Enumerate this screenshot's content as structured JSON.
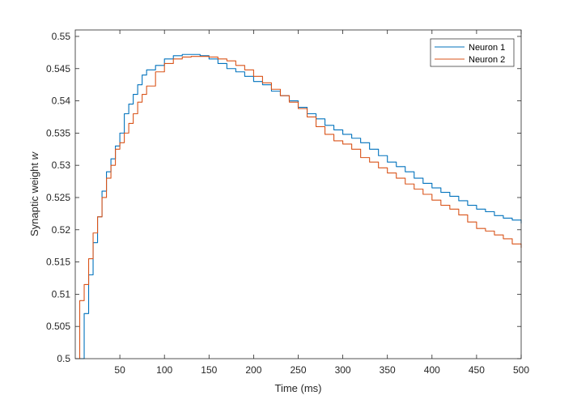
{
  "chart_data": {
    "type": "line",
    "xlabel": "Time (ms)",
    "ylabel_main": "Synaptic weight ",
    "ylabel_var": "w",
    "xlim": [
      0,
      500
    ],
    "ylim": [
      0.5,
      0.551
    ],
    "xticks": [
      50,
      100,
      150,
      200,
      250,
      300,
      350,
      400,
      450,
      500
    ],
    "xtick_labels": [
      "50",
      "100",
      "150",
      "200",
      "250",
      "300",
      "350",
      "400",
      "450",
      "500"
    ],
    "yticks": [
      0.5,
      0.505,
      0.51,
      0.515,
      0.52,
      0.525,
      0.53,
      0.535,
      0.54,
      0.545,
      0.55
    ],
    "ytick_labels": [
      "0.5",
      "0.505",
      "0.51",
      "0.515",
      "0.52",
      "0.525",
      "0.53",
      "0.535",
      "0.54",
      "0.545",
      "0.55"
    ],
    "grid": false,
    "legend": {
      "placement": "top-right"
    },
    "series": [
      {
        "name": "Neuron 1",
        "color": "#0072BD",
        "x": [
          0,
          5,
          10,
          15,
          20,
          25,
          30,
          35,
          40,
          45,
          50,
          55,
          60,
          65,
          70,
          75,
          80,
          90,
          100,
          110,
          120,
          130,
          140,
          150,
          160,
          170,
          180,
          190,
          200,
          210,
          220,
          230,
          240,
          250,
          260,
          270,
          280,
          290,
          300,
          310,
          320,
          330,
          340,
          350,
          360,
          370,
          380,
          390,
          400,
          410,
          420,
          430,
          440,
          450,
          460,
          470,
          480,
          490,
          500
        ],
        "y": [
          0.5,
          0.5,
          0.507,
          0.513,
          0.518,
          0.522,
          0.526,
          0.529,
          0.531,
          0.533,
          0.535,
          0.538,
          0.5395,
          0.541,
          0.5425,
          0.544,
          0.5448,
          0.5455,
          0.5465,
          0.547,
          0.5472,
          0.5472,
          0.547,
          0.5465,
          0.5458,
          0.545,
          0.5445,
          0.5438,
          0.543,
          0.5425,
          0.5415,
          0.5408,
          0.54,
          0.539,
          0.538,
          0.5372,
          0.5362,
          0.5355,
          0.5348,
          0.5342,
          0.5335,
          0.5325,
          0.5315,
          0.5305,
          0.5298,
          0.529,
          0.528,
          0.5272,
          0.5265,
          0.5258,
          0.5252,
          0.5245,
          0.5238,
          0.5232,
          0.5228,
          0.5222,
          0.5218,
          0.5215,
          0.521
        ]
      },
      {
        "name": "Neuron 2",
        "color": "#D95319",
        "x": [
          0,
          5,
          10,
          15,
          20,
          25,
          30,
          35,
          40,
          45,
          50,
          55,
          60,
          65,
          70,
          75,
          80,
          90,
          100,
          110,
          120,
          130,
          140,
          150,
          160,
          170,
          180,
          190,
          200,
          210,
          220,
          230,
          240,
          250,
          260,
          270,
          280,
          290,
          300,
          310,
          320,
          330,
          340,
          350,
          360,
          370,
          380,
          390,
          400,
          410,
          420,
          430,
          440,
          450,
          460,
          470,
          480,
          490,
          500
        ],
        "y": [
          0.5,
          0.509,
          0.5115,
          0.5155,
          0.5195,
          0.522,
          0.525,
          0.528,
          0.53,
          0.5325,
          0.5335,
          0.535,
          0.5365,
          0.538,
          0.5398,
          0.541,
          0.5423,
          0.5445,
          0.5458,
          0.5465,
          0.5468,
          0.5469,
          0.5469,
          0.5468,
          0.5465,
          0.5462,
          0.5455,
          0.5448,
          0.5438,
          0.5428,
          0.5418,
          0.5408,
          0.5398,
          0.5388,
          0.5375,
          0.536,
          0.5348,
          0.5338,
          0.5333,
          0.5325,
          0.5312,
          0.5305,
          0.5296,
          0.5288,
          0.528,
          0.5271,
          0.5263,
          0.5255,
          0.5246,
          0.5238,
          0.5232,
          0.5223,
          0.5212,
          0.5202,
          0.5198,
          0.5192,
          0.5186,
          0.5178,
          0.5172
        ]
      }
    ]
  }
}
